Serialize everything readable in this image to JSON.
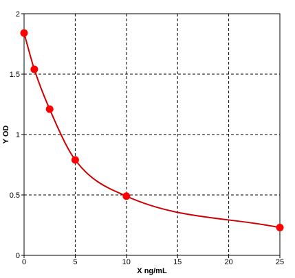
{
  "chart_data": {
    "type": "scatter",
    "title": "",
    "xlabel": "X ng/mL",
    "ylabel": "Y OD",
    "xlim": [
      0,
      25
    ],
    "ylim": [
      0,
      2
    ],
    "x_ticks": [
      0,
      5,
      10,
      15,
      20,
      25
    ],
    "y_ticks": [
      0,
      0.5,
      1,
      1.5,
      2
    ],
    "x_tick_labels": [
      "0",
      "5",
      "10",
      "15",
      "20",
      "25"
    ],
    "y_tick_labels": [
      "0",
      "0.5",
      "1",
      "1.5",
      "2"
    ],
    "grid": true,
    "grid_style": "dashed",
    "legend": "none",
    "series": [
      {
        "x": [
          0,
          1,
          2.5,
          5,
          10,
          25
        ],
        "y": [
          1.84,
          1.54,
          1.21,
          0.79,
          0.49,
          0.23
        ],
        "color": "#ff0000",
        "fit_line": true,
        "fit_color": "#cc0000"
      }
    ]
  }
}
